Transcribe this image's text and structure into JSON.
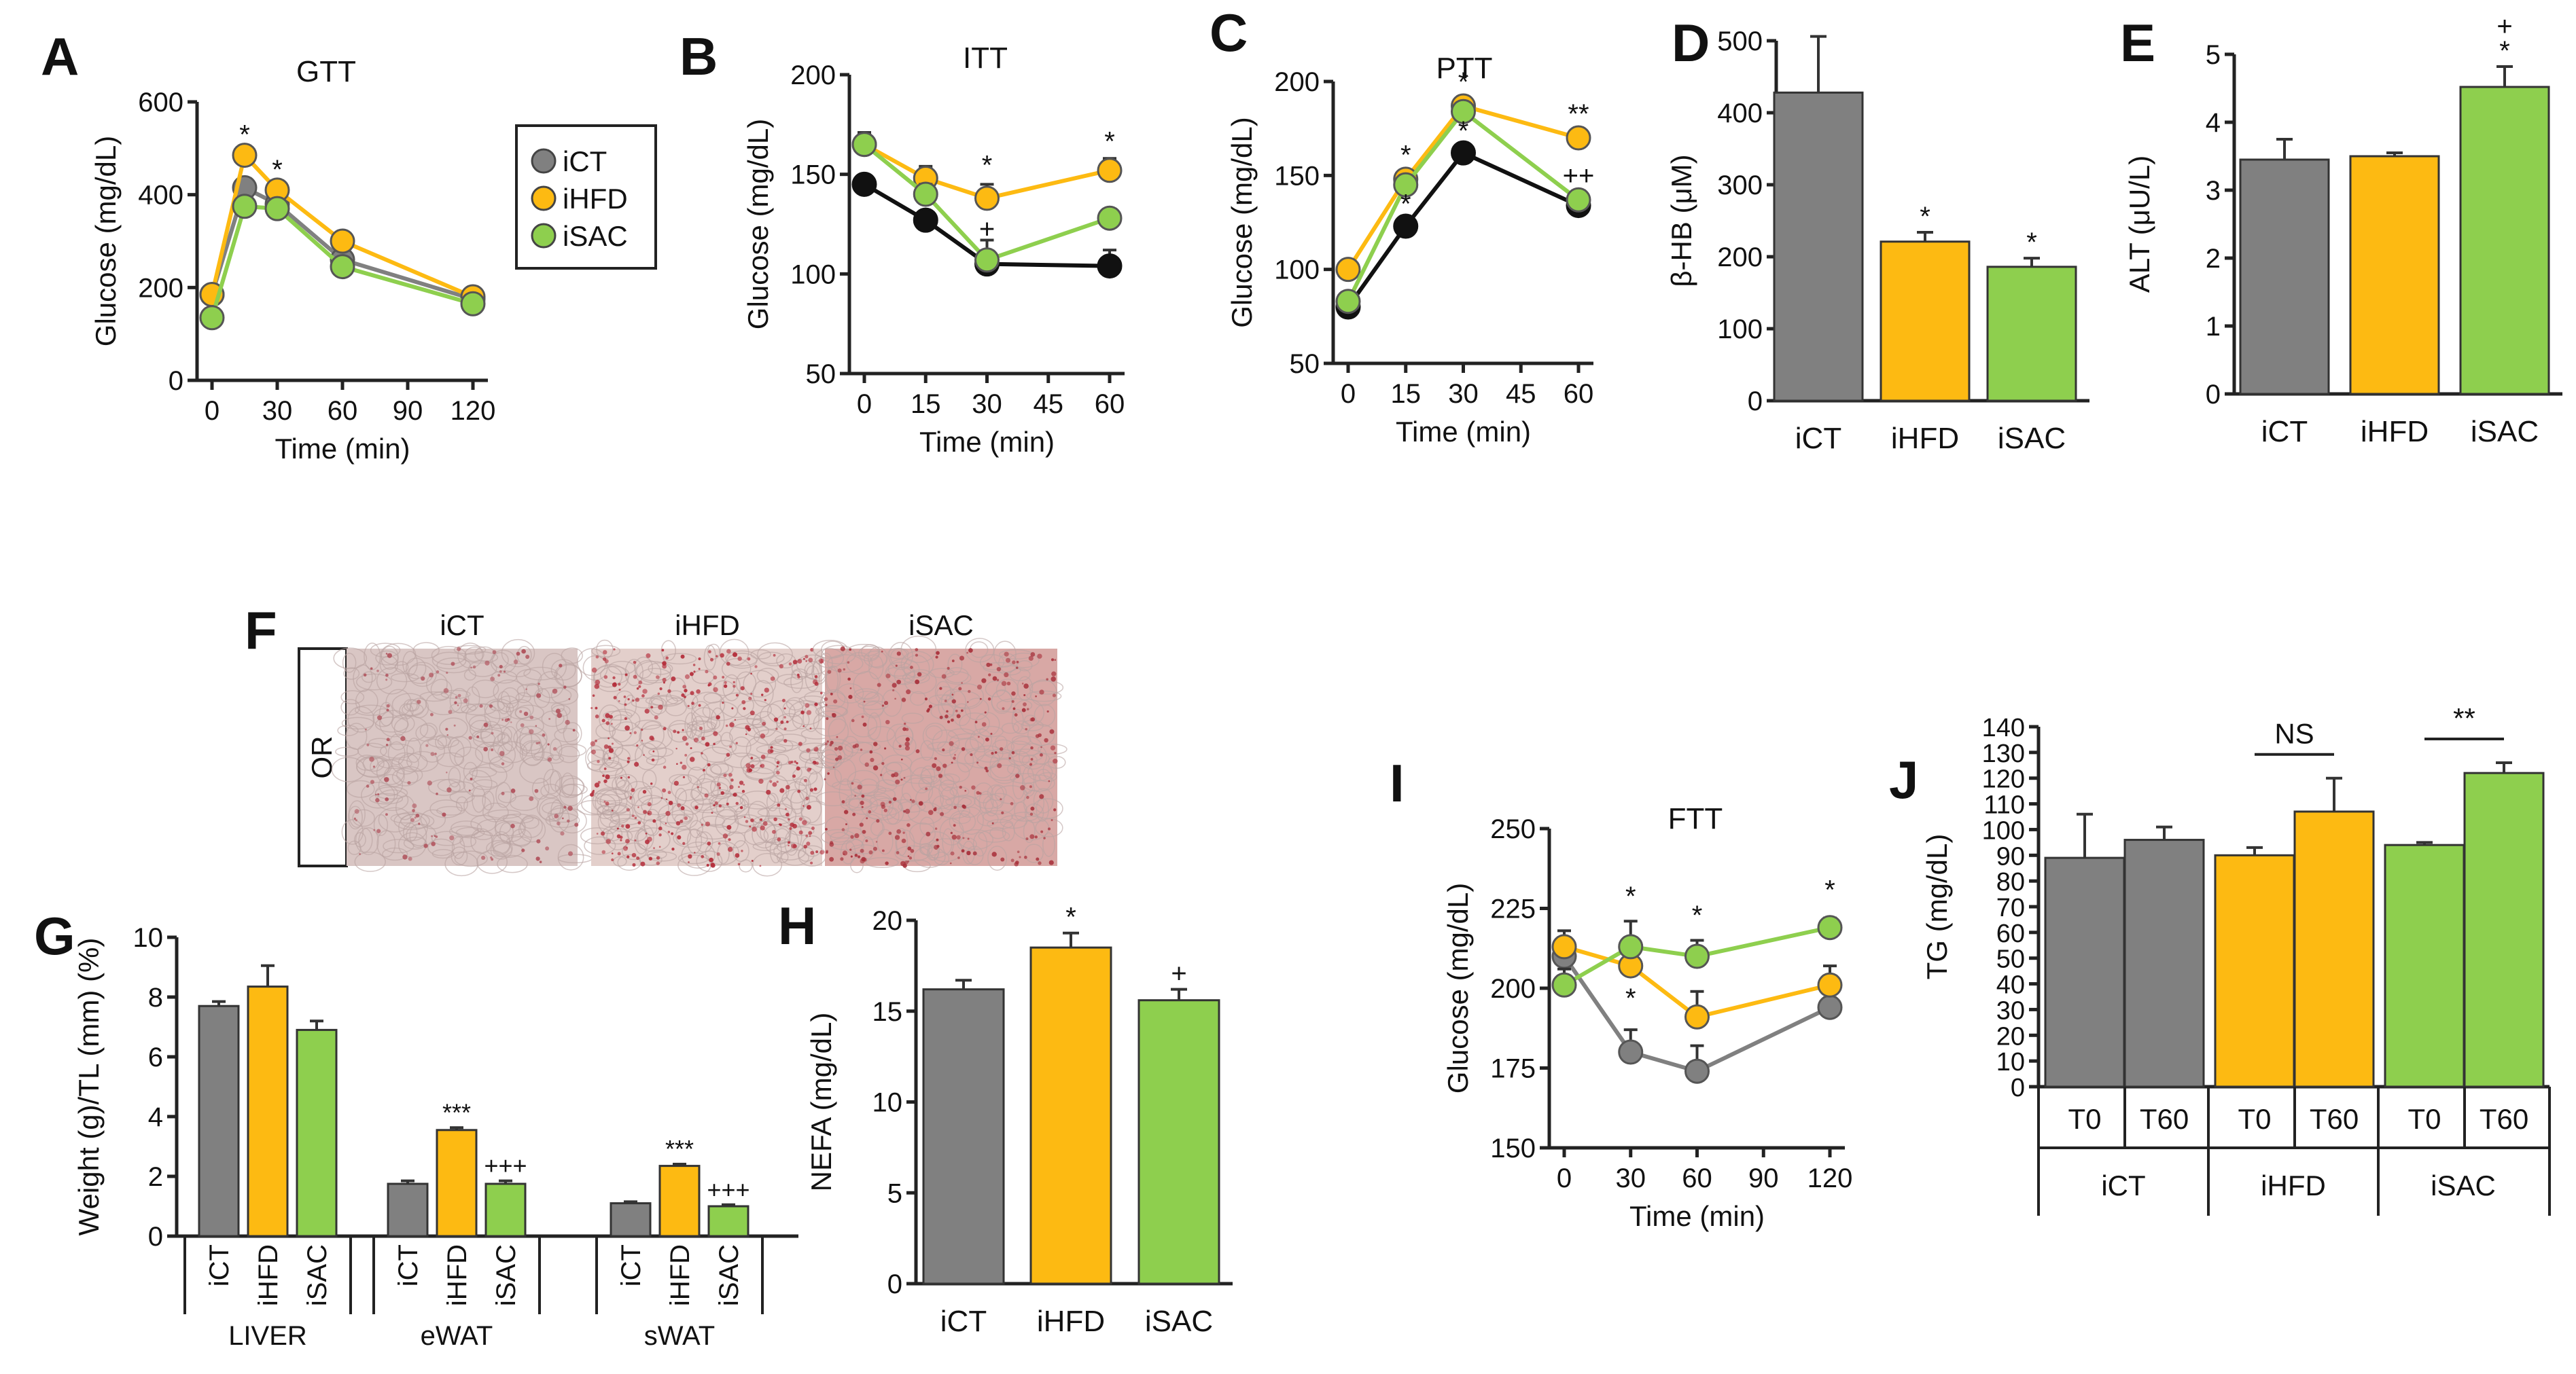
{
  "colors": {
    "iCT": "#808080",
    "iHFD": "#FDBA12",
    "iSAC": "#8ECF4E",
    "black": "#111111"
  },
  "legend": {
    "entries": [
      "iCT",
      "iHFD",
      "iSAC"
    ]
  },
  "chart_data": [
    {
      "id": "A",
      "letter": "A",
      "type": "line",
      "title": "GTT",
      "xlabel": "Time (min)",
      "ylabel": "Glucose (mg/dL)",
      "x": [
        0,
        15,
        30,
        60,
        120
      ],
      "xticks": [
        0,
        30,
        60,
        90,
        120
      ],
      "xlim": [
        0,
        120
      ],
      "yticks": [
        0,
        200,
        400,
        600
      ],
      "ylim": [
        0,
        600
      ],
      "series": [
        {
          "name": "iCT",
          "color": "#808080",
          "values": [
            185,
            415,
            380,
            260,
            175
          ],
          "err": [
            10,
            15,
            12,
            10,
            8
          ]
        },
        {
          "name": "iHFD",
          "color": "#FDBA12",
          "values": [
            185,
            485,
            410,
            300,
            180
          ],
          "err": [
            10,
            20,
            20,
            12,
            8
          ]
        },
        {
          "name": "iSAC",
          "color": "#8ECF4E",
          "values": [
            135,
            375,
            370,
            245,
            165
          ],
          "err": [
            10,
            12,
            12,
            10,
            8
          ]
        }
      ],
      "annotations": [
        {
          "x": 15,
          "y": 510,
          "text": "*"
        },
        {
          "x": 30,
          "y": 435,
          "text": "*"
        }
      ]
    },
    {
      "id": "B",
      "letter": "B",
      "type": "line",
      "title": "ITT",
      "xlabel": "Time (min)",
      "ylabel": "Glucose (mg/dL)",
      "x": [
        0,
        15,
        30,
        60
      ],
      "xticks": [
        0,
        15,
        30,
        45,
        60
      ],
      "xlim": [
        0,
        60
      ],
      "yticks": [
        50,
        100,
        150,
        200
      ],
      "ylim": [
        50,
        200
      ],
      "series": [
        {
          "name": "iCT",
          "color": "#111111",
          "values": [
            145,
            127,
            105,
            104
          ],
          "err": [
            4,
            4,
            3,
            8
          ]
        },
        {
          "name": "iHFD",
          "color": "#FDBA12",
          "values": [
            165,
            148,
            138,
            152
          ],
          "err": [
            6,
            6,
            7,
            6
          ]
        },
        {
          "name": "iSAC",
          "color": "#8ECF4E",
          "values": [
            165,
            140,
            107,
            128
          ],
          "err": [
            6,
            5,
            10,
            3
          ]
        }
      ],
      "annotations": [
        {
          "x": 30,
          "y": 150,
          "text": "*"
        },
        {
          "x": 30,
          "y": 118,
          "text": "+"
        },
        {
          "x": 60,
          "y": 162,
          "text": "*"
        }
      ]
    },
    {
      "id": "C",
      "letter": "C",
      "type": "line",
      "title": "PTT",
      "xlabel": "Time (min)",
      "ylabel": "Glucose (mg/dL)",
      "x": [
        0,
        15,
        30,
        60
      ],
      "xticks": [
        0,
        15,
        30,
        45,
        60
      ],
      "xlim": [
        0,
        60
      ],
      "yticks": [
        50,
        100,
        150,
        200
      ],
      "ylim": [
        50,
        200
      ],
      "series": [
        {
          "name": "iCT",
          "color": "#111111",
          "values": [
            80,
            123,
            162,
            134
          ],
          "err": [
            3,
            4,
            4,
            4
          ]
        },
        {
          "name": "iHFD",
          "color": "#FDBA12",
          "values": [
            100,
            148,
            187,
            170
          ],
          "err": [
            3,
            4,
            5,
            4
          ]
        },
        {
          "name": "iSAC",
          "color": "#8ECF4E",
          "values": [
            83,
            145,
            184,
            137
          ],
          "err": [
            3,
            4,
            4,
            4
          ]
        }
      ],
      "annotations": [
        {
          "x": 15,
          "y": 156,
          "text": "*"
        },
        {
          "x": 15,
          "y": 130,
          "text": "*"
        },
        {
          "x": 30,
          "y": 195,
          "text": "*"
        },
        {
          "x": 30,
          "y": 169,
          "text": "*"
        },
        {
          "x": 60,
          "y": 178,
          "text": "**"
        },
        {
          "x": 60,
          "y": 145,
          "text": "++"
        }
      ]
    },
    {
      "id": "D",
      "letter": "D",
      "type": "bar",
      "ylabel": "β-HB (μM)",
      "categories": [
        "iCT",
        "iHFD",
        "iSAC"
      ],
      "values": [
        428,
        221,
        186
      ],
      "err": [
        78,
        13,
        12
      ],
      "colors": [
        "#808080",
        "#FDBA12",
        "#8ECF4E"
      ],
      "yticks": [
        0,
        100,
        200,
        300,
        400,
        500
      ],
      "ylim": [
        0,
        500
      ],
      "annotations": [
        {
          "i": 1,
          "text": "*"
        },
        {
          "i": 2,
          "text": "*"
        }
      ]
    },
    {
      "id": "E",
      "letter": "E",
      "type": "bar",
      "ylabel": "ALT (μU/L)",
      "categories": [
        "iCT",
        "iHFD",
        "iSAC"
      ],
      "values": [
        3.45,
        3.5,
        4.52
      ],
      "err": [
        0.3,
        0.05,
        0.3
      ],
      "colors": [
        "#808080",
        "#FDBA12",
        "#8ECF4E"
      ],
      "yticks": [
        0,
        1,
        2,
        3,
        4,
        5
      ],
      "ylim": [
        0,
        5
      ],
      "annotations": [
        {
          "i": 2,
          "text": "*"
        },
        {
          "i": 2,
          "text": "+"
        }
      ]
    },
    {
      "id": "G",
      "letter": "G",
      "type": "bar",
      "ylabel": "Weight (g)/TL (mm) (%)",
      "groups": [
        "LIVER",
        "eWAT",
        "sWAT"
      ],
      "categories": [
        "iCT",
        "iHFD",
        "iSAC"
      ],
      "values": [
        [
          7.7,
          8.35,
          6.9
        ],
        [
          1.75,
          3.55,
          1.75
        ],
        [
          1.1,
          2.35,
          1.0
        ]
      ],
      "err": [
        [
          0.15,
          0.7,
          0.3
        ],
        [
          0.1,
          0.08,
          0.1
        ],
        [
          0.05,
          0.06,
          0.05
        ]
      ],
      "colors": [
        "#808080",
        "#FDBA12",
        "#8ECF4E"
      ],
      "yticks": [
        0,
        2,
        4,
        6,
        8,
        10
      ],
      "ylim": [
        0,
        10
      ],
      "annotations": [
        {
          "g": 1,
          "i": 1,
          "text": "***"
        },
        {
          "g": 1,
          "i": 2,
          "text": "+++"
        },
        {
          "g": 2,
          "i": 1,
          "text": "***"
        },
        {
          "g": 2,
          "i": 2,
          "text": "+++"
        }
      ]
    },
    {
      "id": "H",
      "letter": "H",
      "type": "bar",
      "ylabel": "NEFA (mg/dL)",
      "categories": [
        "iCT",
        "iHFD",
        "iSAC"
      ],
      "values": [
        16.2,
        18.5,
        15.6
      ],
      "err": [
        0.5,
        0.8,
        0.6
      ],
      "colors": [
        "#808080",
        "#FDBA12",
        "#8ECF4E"
      ],
      "yticks": [
        0,
        5,
        10,
        15,
        20
      ],
      "ylim": [
        0,
        20
      ],
      "annotations": [
        {
          "i": 1,
          "text": "*"
        },
        {
          "i": 2,
          "text": "+"
        }
      ]
    },
    {
      "id": "I",
      "letter": "I",
      "type": "line",
      "title": "FTT",
      "xlabel": "Time (min)",
      "ylabel": "Glucose (mg/dL)",
      "x": [
        0,
        30,
        60,
        120
      ],
      "xticks": [
        0,
        30,
        60,
        90,
        120
      ],
      "xlim": [
        0,
        120
      ],
      "yticks": [
        150,
        175,
        200,
        225,
        250
      ],
      "ylim": [
        150,
        250
      ],
      "series": [
        {
          "name": "iCT",
          "color": "#808080",
          "values": [
            210,
            180,
            174,
            194
          ],
          "err": [
            5,
            7,
            8,
            3
          ]
        },
        {
          "name": "iHFD",
          "color": "#FDBA12",
          "values": [
            213,
            207,
            191,
            201
          ],
          "err": [
            5,
            6,
            8,
            6
          ]
        },
        {
          "name": "iSAC",
          "color": "#8ECF4E",
          "values": [
            201,
            213,
            210,
            219
          ],
          "err": [
            5,
            8,
            5,
            3
          ]
        }
      ],
      "annotations": [
        {
          "x": 30,
          "y": 226,
          "text": "*"
        },
        {
          "x": 30,
          "y": 194,
          "text": "*"
        },
        {
          "x": 60,
          "y": 220,
          "text": "*"
        },
        {
          "x": 120,
          "y": 228,
          "text": "*"
        }
      ]
    },
    {
      "id": "J",
      "letter": "J",
      "type": "bar",
      "ylabel": "TG (mg/dL)",
      "groups": [
        "iCT",
        "iHFD",
        "iSAC"
      ],
      "categories": [
        "T0",
        "T60"
      ],
      "values": [
        [
          89,
          96
        ],
        [
          90,
          107
        ],
        [
          94,
          122
        ]
      ],
      "err": [
        [
          17,
          5
        ],
        [
          3,
          13
        ],
        [
          1,
          4
        ]
      ],
      "colors": [
        "#808080",
        "#FDBA12",
        "#8ECF4E"
      ],
      "yticks": [
        0,
        10,
        20,
        30,
        40,
        50,
        60,
        70,
        80,
        90,
        100,
        110,
        120,
        130,
        140
      ],
      "ylim": [
        0,
        140
      ],
      "comparisons": [
        {
          "g": 1,
          "text": "NS"
        },
        {
          "g": 2,
          "text": "**"
        }
      ]
    }
  ],
  "histology": {
    "letter": "F",
    "row_label": "OR",
    "columns": [
      {
        "label": "iCT",
        "tone": "#d9c6c4",
        "speck": "#b0505a",
        "density": 0.35
      },
      {
        "label": "iHFD",
        "tone": "#e3cfcb",
        "speck": "#b42d3a",
        "density": 0.95
      },
      {
        "label": "iSAC",
        "tone": "#d8a8a5",
        "speck": "#a8303a",
        "density": 0.75
      }
    ]
  }
}
